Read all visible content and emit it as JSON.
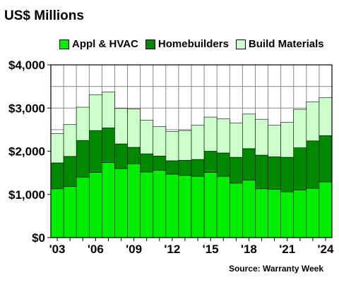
{
  "chart_data": {
    "type": "bar",
    "stacked": true,
    "title": "US$ Millions",
    "source": "Source: Warranty Week",
    "years": [
      2003,
      2004,
      2005,
      2006,
      2007,
      2008,
      2009,
      2010,
      2011,
      2012,
      2013,
      2014,
      2015,
      2016,
      2017,
      2018,
      2019,
      2020,
      2021,
      2022,
      2023,
      2024
    ],
    "x_tick_labels": [
      "'03",
      "'06",
      "'09",
      "'12",
      "'15",
      "'18",
      "'21",
      "'24"
    ],
    "y_tick_labels": [
      "$0",
      "$1,000",
      "$2,000",
      "$3,000",
      "$4,000"
    ],
    "ylim": [
      0,
      4000
    ],
    "grid": true,
    "legend_position": "top",
    "series": [
      {
        "name": "Appl & HVAC",
        "color": "#00ee00",
        "values": [
          1130,
          1180,
          1400,
          1510,
          1740,
          1600,
          1710,
          1520,
          1560,
          1470,
          1440,
          1420,
          1510,
          1420,
          1260,
          1330,
          1130,
          1120,
          1060,
          1100,
          1140,
          1290
        ]
      },
      {
        "name": "Homebuilders",
        "color": "#008800",
        "values": [
          600,
          700,
          850,
          970,
          800,
          570,
          380,
          420,
          330,
          310,
          350,
          390,
          490,
          540,
          600,
          730,
          780,
          750,
          800,
          980,
          1100,
          1070
        ]
      },
      {
        "name": "Build Materials",
        "color": "#ccffcc",
        "values": [
          680,
          740,
          770,
          830,
          830,
          820,
          890,
          780,
          680,
          680,
          690,
          790,
          790,
          790,
          790,
          800,
          830,
          730,
          810,
          890,
          900,
          880
        ]
      }
    ]
  }
}
